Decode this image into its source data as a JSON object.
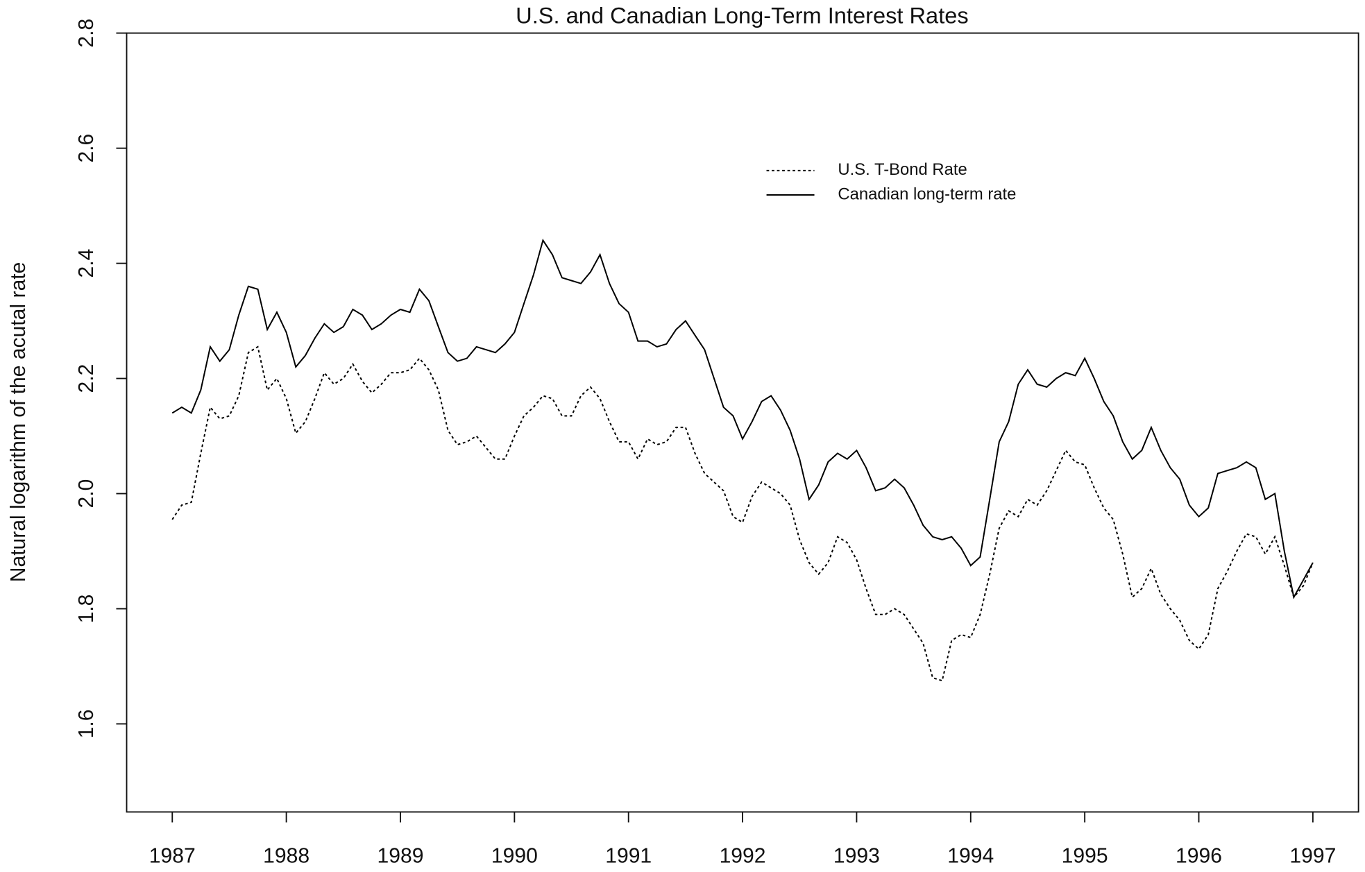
{
  "chart_data": {
    "type": "line",
    "title": "U.S. and Canadian Long-Term Interest Rates",
    "ylabel": "Natural logarithm of the acutal rate",
    "x": [
      1987,
      1987.083,
      1987.167,
      1987.25,
      1987.333,
      1987.417,
      1987.5,
      1987.583,
      1987.667,
      1987.75,
      1987.833,
      1987.917,
      1988,
      1988.083,
      1988.167,
      1988.25,
      1988.333,
      1988.417,
      1988.5,
      1988.583,
      1988.667,
      1988.75,
      1988.833,
      1988.917,
      1989,
      1989.083,
      1989.167,
      1989.25,
      1989.333,
      1989.417,
      1989.5,
      1989.583,
      1989.667,
      1989.75,
      1989.833,
      1989.917,
      1990,
      1990.083,
      1990.167,
      1990.25,
      1990.333,
      1990.417,
      1990.5,
      1990.583,
      1990.667,
      1990.75,
      1990.833,
      1990.917,
      1991,
      1991.083,
      1991.167,
      1991.25,
      1991.333,
      1991.417,
      1991.5,
      1991.583,
      1991.667,
      1991.75,
      1991.833,
      1991.917,
      1992,
      1992.083,
      1992.167,
      1992.25,
      1992.333,
      1992.417,
      1992.5,
      1992.583,
      1992.667,
      1992.75,
      1992.833,
      1992.917,
      1993,
      1993.083,
      1993.167,
      1993.25,
      1993.333,
      1993.417,
      1993.5,
      1993.583,
      1993.667,
      1993.75,
      1993.833,
      1993.917,
      1994,
      1994.083,
      1994.167,
      1994.25,
      1994.333,
      1994.417,
      1994.5,
      1994.583,
      1994.667,
      1994.75,
      1994.833,
      1994.917,
      1995,
      1995.083,
      1995.167,
      1995.25,
      1995.333,
      1995.417,
      1995.5,
      1995.583,
      1995.667,
      1995.75,
      1995.833,
      1995.917,
      1996,
      1996.083,
      1996.167,
      1996.25,
      1996.333,
      1996.417,
      1996.5,
      1996.583,
      1996.667,
      1996.75,
      1996.833,
      1996.917,
      1997
    ],
    "series": [
      {
        "name": "U.S. T-Bond Rate",
        "color": "#000000",
        "dash": "dotted",
        "values": [
          1.955,
          1.98,
          1.985,
          2.07,
          2.15,
          2.13,
          2.135,
          2.17,
          2.245,
          2.255,
          2.18,
          2.2,
          2.165,
          2.105,
          2.125,
          2.165,
          2.21,
          2.19,
          2.2,
          2.225,
          2.195,
          2.175,
          2.19,
          2.21,
          2.21,
          2.215,
          2.235,
          2.215,
          2.18,
          2.11,
          2.085,
          2.09,
          2.1,
          2.08,
          2.06,
          2.06,
          2.1,
          2.135,
          2.15,
          2.17,
          2.165,
          2.135,
          2.135,
          2.17,
          2.185,
          2.165,
          2.125,
          2.09,
          2.09,
          2.06,
          2.095,
          2.085,
          2.09,
          2.115,
          2.115,
          2.07,
          2.035,
          2.02,
          2.005,
          1.96,
          1.95,
          1.995,
          2.02,
          2.01,
          2.0,
          1.98,
          1.92,
          1.88,
          1.86,
          1.88,
          1.925,
          1.915,
          1.885,
          1.835,
          1.79,
          1.79,
          1.8,
          1.79,
          1.765,
          1.74,
          1.68,
          1.675,
          1.745,
          1.755,
          1.75,
          1.79,
          1.86,
          1.94,
          1.97,
          1.96,
          1.99,
          1.98,
          2.005,
          2.04,
          2.075,
          2.055,
          2.05,
          2.01,
          1.975,
          1.955,
          1.895,
          1.82,
          1.835,
          1.87,
          1.825,
          1.8,
          1.78,
          1.745,
          1.73,
          1.755,
          1.835,
          1.865,
          1.9,
          1.93,
          1.925,
          1.895,
          1.925,
          1.875,
          1.82,
          1.84,
          1.88
        ]
      },
      {
        "name": "Canadian long-term rate",
        "color": "#000000",
        "dash": "solid",
        "values": [
          2.14,
          2.15,
          2.14,
          2.18,
          2.255,
          2.23,
          2.25,
          2.31,
          2.36,
          2.355,
          2.285,
          2.315,
          2.28,
          2.22,
          2.24,
          2.27,
          2.295,
          2.28,
          2.29,
          2.32,
          2.31,
          2.285,
          2.295,
          2.31,
          2.32,
          2.315,
          2.355,
          2.335,
          2.29,
          2.245,
          2.23,
          2.235,
          2.255,
          2.25,
          2.245,
          2.26,
          2.28,
          2.33,
          2.38,
          2.44,
          2.415,
          2.375,
          2.37,
          2.365,
          2.385,
          2.415,
          2.365,
          2.33,
          2.315,
          2.265,
          2.265,
          2.255,
          2.26,
          2.285,
          2.3,
          2.275,
          2.25,
          2.2,
          2.15,
          2.135,
          2.095,
          2.125,
          2.16,
          2.17,
          2.145,
          2.11,
          2.06,
          1.99,
          2.015,
          2.055,
          2.07,
          2.06,
          2.075,
          2.045,
          2.005,
          2.01,
          2.025,
          2.01,
          1.98,
          1.945,
          1.925,
          1.92,
          1.925,
          1.905,
          1.875,
          1.89,
          1.99,
          2.09,
          2.125,
          2.19,
          2.215,
          2.19,
          2.185,
          2.2,
          2.21,
          2.205,
          2.235,
          2.2,
          2.16,
          2.135,
          2.09,
          2.06,
          2.075,
          2.115,
          2.075,
          2.045,
          2.025,
          1.98,
          1.96,
          1.975,
          2.035,
          2.04,
          2.045,
          2.055,
          2.045,
          1.99,
          2.0,
          1.9,
          1.82,
          1.85,
          1.88
        ]
      }
    ],
    "xlim": [
      1986.6,
      1997.4
    ],
    "xticks": [
      1987,
      1988,
      1989,
      1990,
      1991,
      1992,
      1993,
      1994,
      1995,
      1996,
      1997
    ],
    "ylim": [
      1.447,
      2.8
    ],
    "yticks": [
      {
        "value": 1.6,
        "label": "1.6"
      },
      {
        "value": 1.8,
        "label": "1.8"
      },
      {
        "value": 2.0,
        "label": "2.0"
      },
      {
        "value": 2.2,
        "label": "2.2"
      },
      {
        "value": 2.4,
        "label": "2.4"
      },
      {
        "value": 2.6,
        "label": "2.6"
      },
      {
        "value": 2.8,
        "label": "2.8"
      }
    ],
    "legend": "top right"
  }
}
